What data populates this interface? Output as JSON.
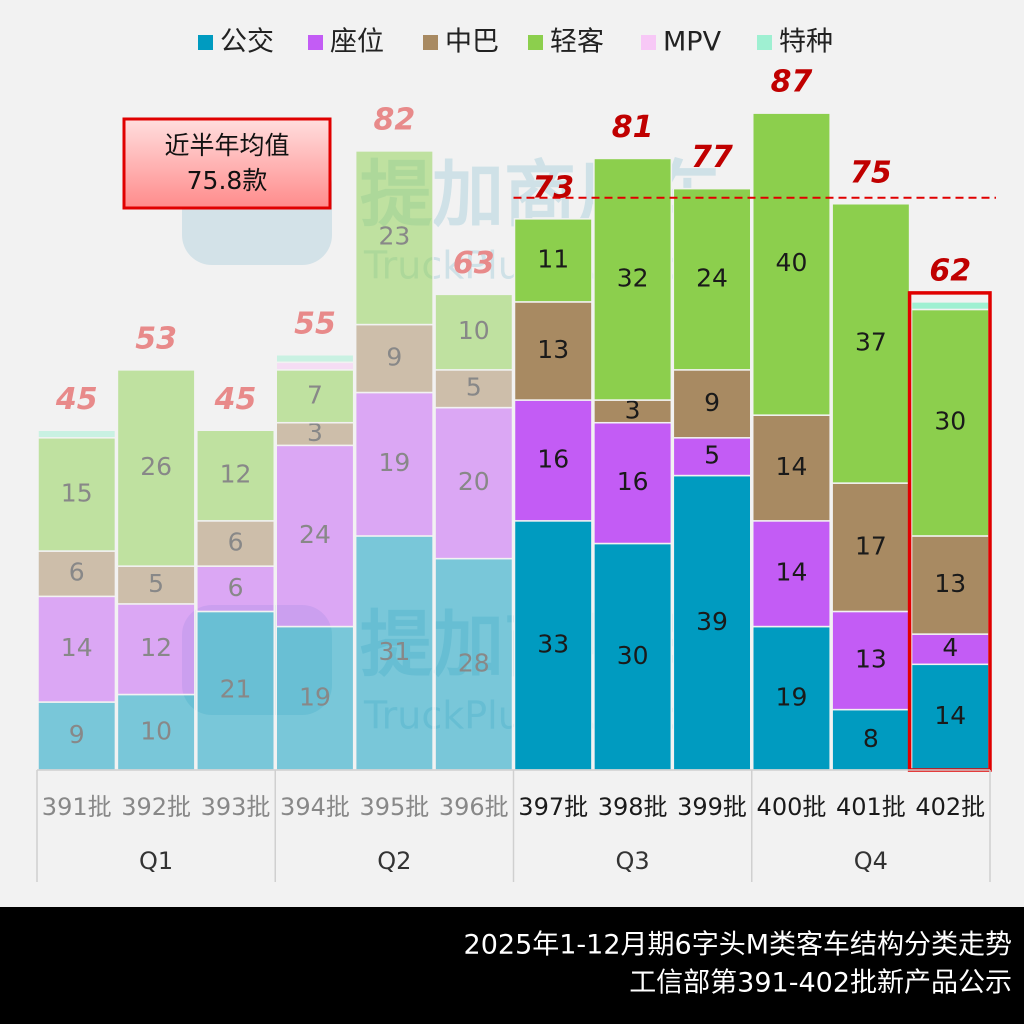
{
  "chart_data": {
    "type": "stacked_bar",
    "categories": [
      "391批",
      "392批",
      "393批",
      "394批",
      "395批",
      "396批",
      "397批",
      "398批",
      "399批",
      "400批",
      "401批",
      "402批"
    ],
    "groups": [
      "Q1",
      "Q2",
      "Q3",
      "Q4"
    ],
    "series": [
      {
        "name": "公交",
        "color": "#009bc0",
        "values": [
          9,
          10,
          21,
          19,
          31,
          28,
          33,
          30,
          39,
          19,
          8,
          14
        ]
      },
      {
        "name": "座位",
        "color": "#c35cf5",
        "values": [
          14,
          12,
          6,
          24,
          19,
          20,
          16,
          16,
          5,
          14,
          13,
          4
        ]
      },
      {
        "name": "中巴",
        "color": "#a88a62",
        "values": [
          6,
          5,
          6,
          3,
          9,
          5,
          13,
          3,
          9,
          14,
          17,
          13
        ]
      },
      {
        "name": "轻客",
        "color": "#8ccf4d",
        "values": [
          15,
          26,
          12,
          7,
          23,
          10,
          11,
          32,
          24,
          40,
          37,
          30
        ]
      },
      {
        "name": "MPV",
        "color": "#f7c8f6",
        "values": [
          0,
          0,
          0,
          1,
          0,
          0,
          0,
          0,
          0,
          0,
          0,
          0
        ]
      },
      {
        "name": "特种",
        "color": "#9ff0d2",
        "values": [
          1,
          0,
          0,
          1,
          0,
          0,
          0,
          0,
          0,
          0,
          0,
          1
        ]
      }
    ],
    "totals": [
      45,
      53,
      45,
      55,
      82,
      63,
      73,
      81,
      77,
      87,
      75,
      62
    ],
    "faded_count": 6,
    "highlight_index": 11,
    "average": {
      "label": "近半年均值",
      "value": 75.8,
      "value_label": "75.8款"
    },
    "watermark": [
      "提加商用车",
      "TruckPlus CVstudio"
    ],
    "footer": [
      "2025年1-12月期6字头M类客车结构分类走势",
      "工信部第391-402批新产品公示"
    ]
  }
}
